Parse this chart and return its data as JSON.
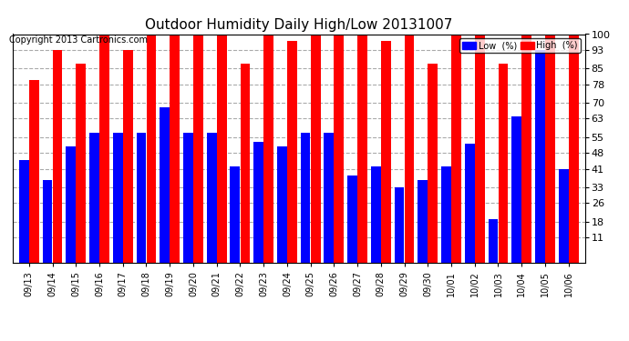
{
  "title": "Outdoor Humidity Daily High/Low 20131007",
  "copyright": "Copyright 2013 Cartronics.com",
  "legend_low": "Low  (%)",
  "legend_high": "High  (%)",
  "low_color": "#0000ff",
  "high_color": "#ff0000",
  "background_color": "#ffffff",
  "grid_color": "#aaaaaa",
  "ylim": [
    11,
    100
  ],
  "yticks": [
    11,
    18,
    26,
    33,
    41,
    48,
    55,
    63,
    70,
    78,
    85,
    93,
    100
  ],
  "dates": [
    "09/13",
    "09/14",
    "09/15",
    "09/16",
    "09/17",
    "09/18",
    "09/19",
    "09/20",
    "09/21",
    "09/22",
    "09/23",
    "09/24",
    "09/25",
    "09/26",
    "09/27",
    "09/28",
    "09/29",
    "09/30",
    "10/01",
    "10/02",
    "10/03",
    "10/04",
    "10/05",
    "10/06"
  ],
  "low_values": [
    45,
    36,
    51,
    57,
    57,
    57,
    68,
    57,
    57,
    42,
    53,
    51,
    57,
    57,
    38,
    42,
    33,
    36,
    42,
    52,
    19,
    64,
    93,
    41
  ],
  "high_values": [
    80,
    93,
    87,
    100,
    93,
    100,
    100,
    100,
    100,
    87,
    100,
    97,
    100,
    100,
    100,
    97,
    100,
    87,
    100,
    100,
    87,
    100,
    100,
    100
  ]
}
